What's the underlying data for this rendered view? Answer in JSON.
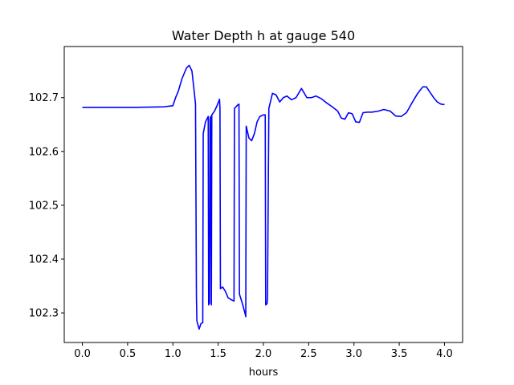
{
  "chart_data": {
    "type": "line",
    "title": "Water Depth h at gauge 540",
    "xlabel": "hours",
    "ylabel": "",
    "xlim": [
      -0.2,
      4.2
    ],
    "ylim": [
      102.245,
      102.795
    ],
    "xticks": [
      0.0,
      0.5,
      1.0,
      1.5,
      2.0,
      2.5,
      3.0,
      3.5,
      4.0
    ],
    "xtick_labels": [
      "0.0",
      "0.5",
      "1.0",
      "1.5",
      "2.0",
      "2.5",
      "3.0",
      "3.5",
      "4.0"
    ],
    "yticks": [
      102.3,
      102.4,
      102.5,
      102.6,
      102.7
    ],
    "ytick_labels": [
      "102.3",
      "102.4",
      "102.5",
      "102.6",
      "102.7"
    ],
    "grid": false,
    "series": [
      {
        "color": "#0000ff",
        "x": [
          0.0,
          0.3,
          0.6,
          0.9,
          1.0,
          1.03,
          1.06,
          1.1,
          1.15,
          1.18,
          1.21,
          1.23,
          1.25,
          1.26,
          1.265,
          1.29,
          1.31,
          1.33,
          1.335,
          1.36,
          1.39,
          1.395,
          1.405,
          1.41,
          1.415,
          1.425,
          1.43,
          1.46,
          1.49,
          1.515,
          1.52,
          1.525,
          1.55,
          1.58,
          1.61,
          1.65,
          1.675,
          1.68,
          1.72,
          1.73,
          1.735,
          1.77,
          1.8,
          1.805,
          1.81,
          1.84,
          1.87,
          1.9,
          1.93,
          1.96,
          2.0,
          2.02,
          2.025,
          2.04,
          2.045,
          2.06,
          2.1,
          2.14,
          2.18,
          2.22,
          2.26,
          2.31,
          2.36,
          2.42,
          2.48,
          2.53,
          2.58,
          2.64,
          2.7,
          2.76,
          2.82,
          2.86,
          2.9,
          2.94,
          2.98,
          3.02,
          3.06,
          3.1,
          3.15,
          3.2,
          3.27,
          3.33,
          3.4,
          3.46,
          3.52,
          3.58,
          3.64,
          3.7,
          3.76,
          3.8,
          3.84,
          3.88,
          3.92,
          3.96,
          4.0
        ],
        "y": [
          102.682,
          102.682,
          102.682,
          102.683,
          102.685,
          102.7,
          102.712,
          102.735,
          102.755,
          102.76,
          102.75,
          102.72,
          102.688,
          102.33,
          102.285,
          102.27,
          102.28,
          102.282,
          102.633,
          102.655,
          102.665,
          102.315,
          102.318,
          102.66,
          102.665,
          102.315,
          102.668,
          102.675,
          102.686,
          102.697,
          102.68,
          102.345,
          102.348,
          102.34,
          102.328,
          102.324,
          102.322,
          102.68,
          102.687,
          102.688,
          102.335,
          102.316,
          102.297,
          102.293,
          102.647,
          102.625,
          102.62,
          102.633,
          102.655,
          102.665,
          102.668,
          102.668,
          102.315,
          102.317,
          102.33,
          102.68,
          102.708,
          102.705,
          102.692,
          102.7,
          102.703,
          102.696,
          102.7,
          102.717,
          102.7,
          102.7,
          102.703,
          102.698,
          102.69,
          102.683,
          102.675,
          102.662,
          102.66,
          102.672,
          102.67,
          102.655,
          102.654,
          102.672,
          102.673,
          102.673,
          102.675,
          102.678,
          102.675,
          102.666,
          102.665,
          102.672,
          102.69,
          102.707,
          102.72,
          102.72,
          102.71,
          102.7,
          102.692,
          102.688,
          102.687
        ]
      }
    ]
  }
}
